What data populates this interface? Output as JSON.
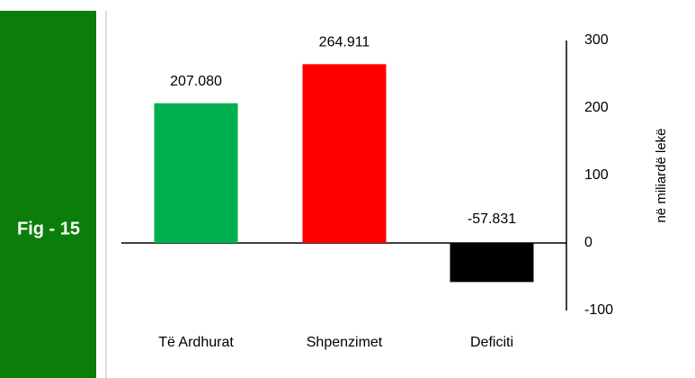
{
  "chart_data": {
    "type": "bar",
    "figure_label": "Fig - 15",
    "y_axis_label": "në miliardë lekë",
    "categories": [
      "Të Ardhurat",
      "Shpenzimet",
      "Deficiti"
    ],
    "values": [
      207.08,
      264.911,
      -57.831
    ],
    "value_labels": [
      "207.080",
      "264.911",
      "-57.831"
    ],
    "colors": [
      "#00b050",
      "#ff0000",
      "#000000"
    ],
    "ylim": [
      -100,
      300
    ],
    "yticks": [
      -100,
      0,
      100,
      200,
      300
    ],
    "y_axis_side": "right",
    "grid": false
  }
}
